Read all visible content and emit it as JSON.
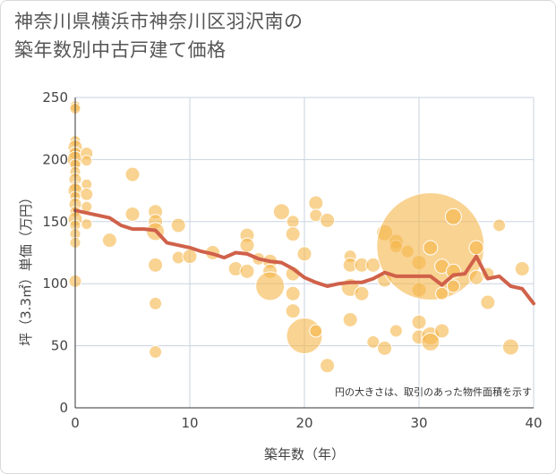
{
  "chart_data": {
    "type": "scatter",
    "title_line1": "神奈川県横浜市神奈川区羽沢南の",
    "title_line2": "築年数別中古戸建て価格",
    "xlabel": "築年数（年）",
    "ylabel": "坪（3.3㎡）単価（万円）",
    "note": "円の大きさは、取引のあった物件面積を示す",
    "xlim": [
      0,
      40
    ],
    "ylim": [
      0,
      250
    ],
    "xticks": [
      "0",
      "10",
      "20",
      "30",
      "40"
    ],
    "yticks": [
      "0",
      "50",
      "100",
      "150",
      "200",
      "250"
    ],
    "colors": {
      "bubble": "#f5b54a",
      "line": "#d0614a",
      "grid": "#c9d3e0"
    },
    "points": [
      {
        "x": 0,
        "y": 243,
        "s": 6
      },
      {
        "x": 0,
        "y": 241,
        "s": 6
      },
      {
        "x": 0,
        "y": 215,
        "s": 6
      },
      {
        "x": 0,
        "y": 210,
        "s": 8
      },
      {
        "x": 0,
        "y": 205,
        "s": 7
      },
      {
        "x": 0,
        "y": 200,
        "s": 9
      },
      {
        "x": 0,
        "y": 196,
        "s": 6
      },
      {
        "x": 0,
        "y": 190,
        "s": 6
      },
      {
        "x": 0,
        "y": 184,
        "s": 7
      },
      {
        "x": 0,
        "y": 178,
        "s": 6
      },
      {
        "x": 0,
        "y": 175,
        "s": 8
      },
      {
        "x": 0,
        "y": 170,
        "s": 6
      },
      {
        "x": 0,
        "y": 164,
        "s": 7
      },
      {
        "x": 0,
        "y": 158,
        "s": 6
      },
      {
        "x": 0,
        "y": 152,
        "s": 8
      },
      {
        "x": 0,
        "y": 147,
        "s": 6
      },
      {
        "x": 0,
        "y": 140,
        "s": 6
      },
      {
        "x": 0,
        "y": 133,
        "s": 6
      },
      {
        "x": 0,
        "y": 102,
        "s": 7
      },
      {
        "x": 1,
        "y": 205,
        "s": 7
      },
      {
        "x": 1,
        "y": 199,
        "s": 6
      },
      {
        "x": 1,
        "y": 180,
        "s": 6
      },
      {
        "x": 1,
        "y": 172,
        "s": 7
      },
      {
        "x": 1,
        "y": 162,
        "s": 6
      },
      {
        "x": 1,
        "y": 148,
        "s": 6
      },
      {
        "x": 3,
        "y": 135,
        "s": 8
      },
      {
        "x": 5,
        "y": 188,
        "s": 8
      },
      {
        "x": 5,
        "y": 156,
        "s": 8
      },
      {
        "x": 7,
        "y": 158,
        "s": 8
      },
      {
        "x": 7,
        "y": 150,
        "s": 8
      },
      {
        "x": 7,
        "y": 142,
        "s": 10
      },
      {
        "x": 7,
        "y": 115,
        "s": 8
      },
      {
        "x": 7,
        "y": 84,
        "s": 7
      },
      {
        "x": 7,
        "y": 45,
        "s": 7
      },
      {
        "x": 9,
        "y": 147,
        "s": 8
      },
      {
        "x": 9,
        "y": 121,
        "s": 7
      },
      {
        "x": 10,
        "y": 122,
        "s": 8
      },
      {
        "x": 12,
        "y": 125,
        "s": 8
      },
      {
        "x": 14,
        "y": 112,
        "s": 8
      },
      {
        "x": 15,
        "y": 139,
        "s": 8
      },
      {
        "x": 15,
        "y": 131,
        "s": 8
      },
      {
        "x": 15,
        "y": 110,
        "s": 8
      },
      {
        "x": 16,
        "y": 120,
        "s": 7
      },
      {
        "x": 17,
        "y": 118,
        "s": 8
      },
      {
        "x": 17,
        "y": 110,
        "s": 8
      },
      {
        "x": 18,
        "y": 158,
        "s": 9
      },
      {
        "x": 17,
        "y": 98,
        "s": 16
      },
      {
        "x": 19,
        "y": 150,
        "s": 7
      },
      {
        "x": 19,
        "y": 140,
        "s": 8
      },
      {
        "x": 19,
        "y": 108,
        "s": 8
      },
      {
        "x": 19,
        "y": 92,
        "s": 8
      },
      {
        "x": 19,
        "y": 78,
        "s": 8
      },
      {
        "x": 20,
        "y": 124,
        "s": 8
      },
      {
        "x": 20,
        "y": 58,
        "s": 20
      },
      {
        "x": 21,
        "y": 165,
        "s": 8
      },
      {
        "x": 21,
        "y": 155,
        "s": 7
      },
      {
        "x": 21,
        "y": 62,
        "s": 7
      },
      {
        "x": 22,
        "y": 151,
        "s": 8
      },
      {
        "x": 22,
        "y": 34,
        "s": 8
      },
      {
        "x": 24,
        "y": 122,
        "s": 7
      },
      {
        "x": 24,
        "y": 115,
        "s": 8
      },
      {
        "x": 24,
        "y": 97,
        "s": 10
      },
      {
        "x": 24,
        "y": 71,
        "s": 8
      },
      {
        "x": 25,
        "y": 115,
        "s": 8
      },
      {
        "x": 25,
        "y": 92,
        "s": 8
      },
      {
        "x": 26,
        "y": 115,
        "s": 8
      },
      {
        "x": 26,
        "y": 53,
        "s": 7
      },
      {
        "x": 27,
        "y": 141,
        "s": 9
      },
      {
        "x": 27,
        "y": 103,
        "s": 8
      },
      {
        "x": 27,
        "y": 48,
        "s": 8
      },
      {
        "x": 28,
        "y": 134,
        "s": 8
      },
      {
        "x": 28,
        "y": 130,
        "s": 7
      },
      {
        "x": 28,
        "y": 62,
        "s": 7
      },
      {
        "x": 29,
        "y": 126,
        "s": 7
      },
      {
        "x": 30,
        "y": 117,
        "s": 8
      },
      {
        "x": 30,
        "y": 95,
        "s": 8
      },
      {
        "x": 30,
        "y": 69,
        "s": 8
      },
      {
        "x": 30,
        "y": 57,
        "s": 8
      },
      {
        "x": 31,
        "y": 130,
        "s": 60
      },
      {
        "x": 31,
        "y": 129,
        "s": 8
      },
      {
        "x": 31,
        "y": 58,
        "s": 10
      },
      {
        "x": 31,
        "y": 53,
        "s": 10
      },
      {
        "x": 32,
        "y": 114,
        "s": 8
      },
      {
        "x": 32,
        "y": 92,
        "s": 7
      },
      {
        "x": 32,
        "y": 62,
        "s": 8
      },
      {
        "x": 33,
        "y": 154,
        "s": 9
      },
      {
        "x": 33,
        "y": 110,
        "s": 8
      },
      {
        "x": 33,
        "y": 98,
        "s": 7
      },
      {
        "x": 35,
        "y": 129,
        "s": 8
      },
      {
        "x": 35,
        "y": 105,
        "s": 8
      },
      {
        "x": 36,
        "y": 108,
        "s": 7
      },
      {
        "x": 36,
        "y": 85,
        "s": 8
      },
      {
        "x": 37,
        "y": 147,
        "s": 7
      },
      {
        "x": 38,
        "y": 49,
        "s": 9
      },
      {
        "x": 39,
        "y": 112,
        "s": 8
      }
    ],
    "line": {
      "x": [
        0,
        1,
        3,
        4,
        5,
        6,
        7,
        8,
        10,
        11,
        12,
        13,
        14,
        15,
        16,
        17,
        18,
        19,
        20,
        21,
        22,
        23,
        24,
        25,
        26,
        27,
        28,
        29,
        30,
        31,
        32,
        33,
        34,
        35,
        36,
        37,
        38,
        39,
        40
      ],
      "y": [
        159,
        157,
        153,
        147,
        144,
        144,
        143,
        133,
        129,
        126,
        124,
        121,
        125,
        124,
        120,
        118,
        117,
        112,
        105,
        101,
        98,
        100,
        101,
        101,
        104,
        109,
        106,
        106,
        106,
        106,
        99,
        107,
        108,
        122,
        104,
        106,
        98,
        96,
        84
      ]
    }
  }
}
